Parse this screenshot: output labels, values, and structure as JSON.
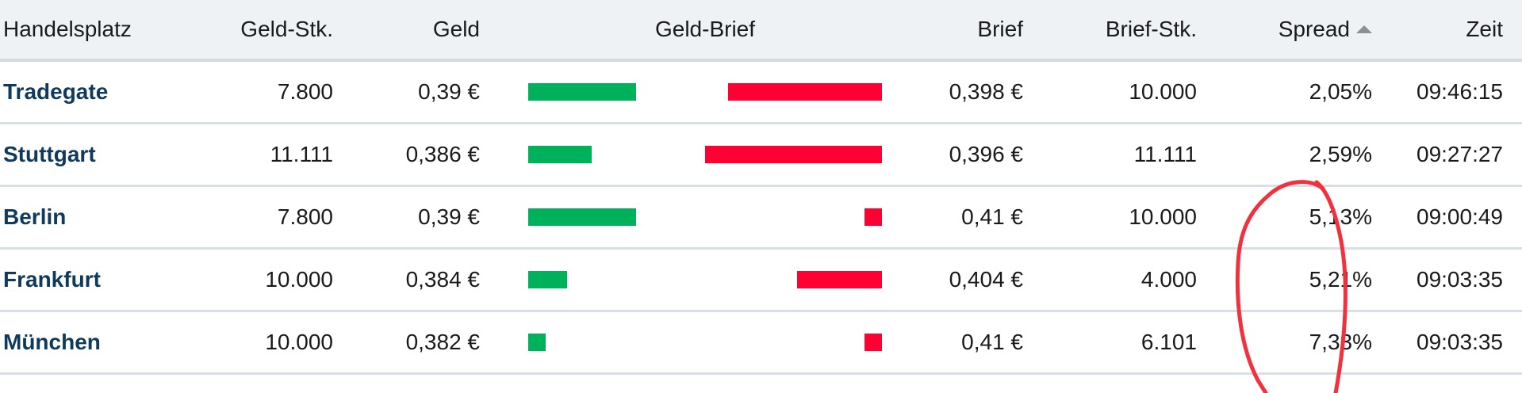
{
  "headers": {
    "handelsplatz": "Handelsplatz",
    "geld_stk": "Geld-Stk.",
    "geld": "Geld",
    "geld_brief": "Geld-Brief",
    "brief": "Brief",
    "brief_stk": "Brief-Stk.",
    "spread": "Spread",
    "zeit": "Zeit"
  },
  "sort": {
    "column": "Spread",
    "direction": "ascending",
    "icon": "sort-up-icon"
  },
  "colors": {
    "name": "#103a5c",
    "geld_bar": "#00b15b",
    "brief_bar": "#ff0033",
    "annotation": "#f0323f"
  },
  "rows": [
    {
      "handelsplatz": "Tradegate",
      "geld_stk": "7.800",
      "geld": "0,39 €",
      "brief": "0,398 €",
      "brief_stk": "10.000",
      "spread": "2,05%",
      "zeit": "09:46:15",
      "geld_bar": 0.61,
      "brief_bar": 0.87
    },
    {
      "handelsplatz": "Stuttgart",
      "geld_stk": "11.111",
      "geld": "0,386 €",
      "brief": "0,396 €",
      "brief_stk": "11.111",
      "spread": "2,59%",
      "zeit": "09:27:27",
      "geld_bar": 0.36,
      "brief_bar": 1.0
    },
    {
      "handelsplatz": "Berlin",
      "geld_stk": "7.800",
      "geld": "0,39 €",
      "brief": "0,41 €",
      "brief_stk": "10.000",
      "spread": "5,13%",
      "zeit": "09:00:49",
      "geld_bar": 0.61,
      "brief_bar": 0.1
    },
    {
      "handelsplatz": "Frankfurt",
      "geld_stk": "10.000",
      "geld": "0,384 €",
      "brief": "0,404 €",
      "brief_stk": "4.000",
      "spread": "5,21%",
      "zeit": "09:03:35",
      "geld_bar": 0.22,
      "brief_bar": 0.48
    },
    {
      "handelsplatz": "München",
      "geld_stk": "10.000",
      "geld": "0,382 €",
      "brief": "0,41 €",
      "brief_stk": "6.101",
      "spread": "7,33%",
      "zeit": "09:03:35",
      "geld_bar": 0.1,
      "brief_bar": 0.1
    }
  ]
}
